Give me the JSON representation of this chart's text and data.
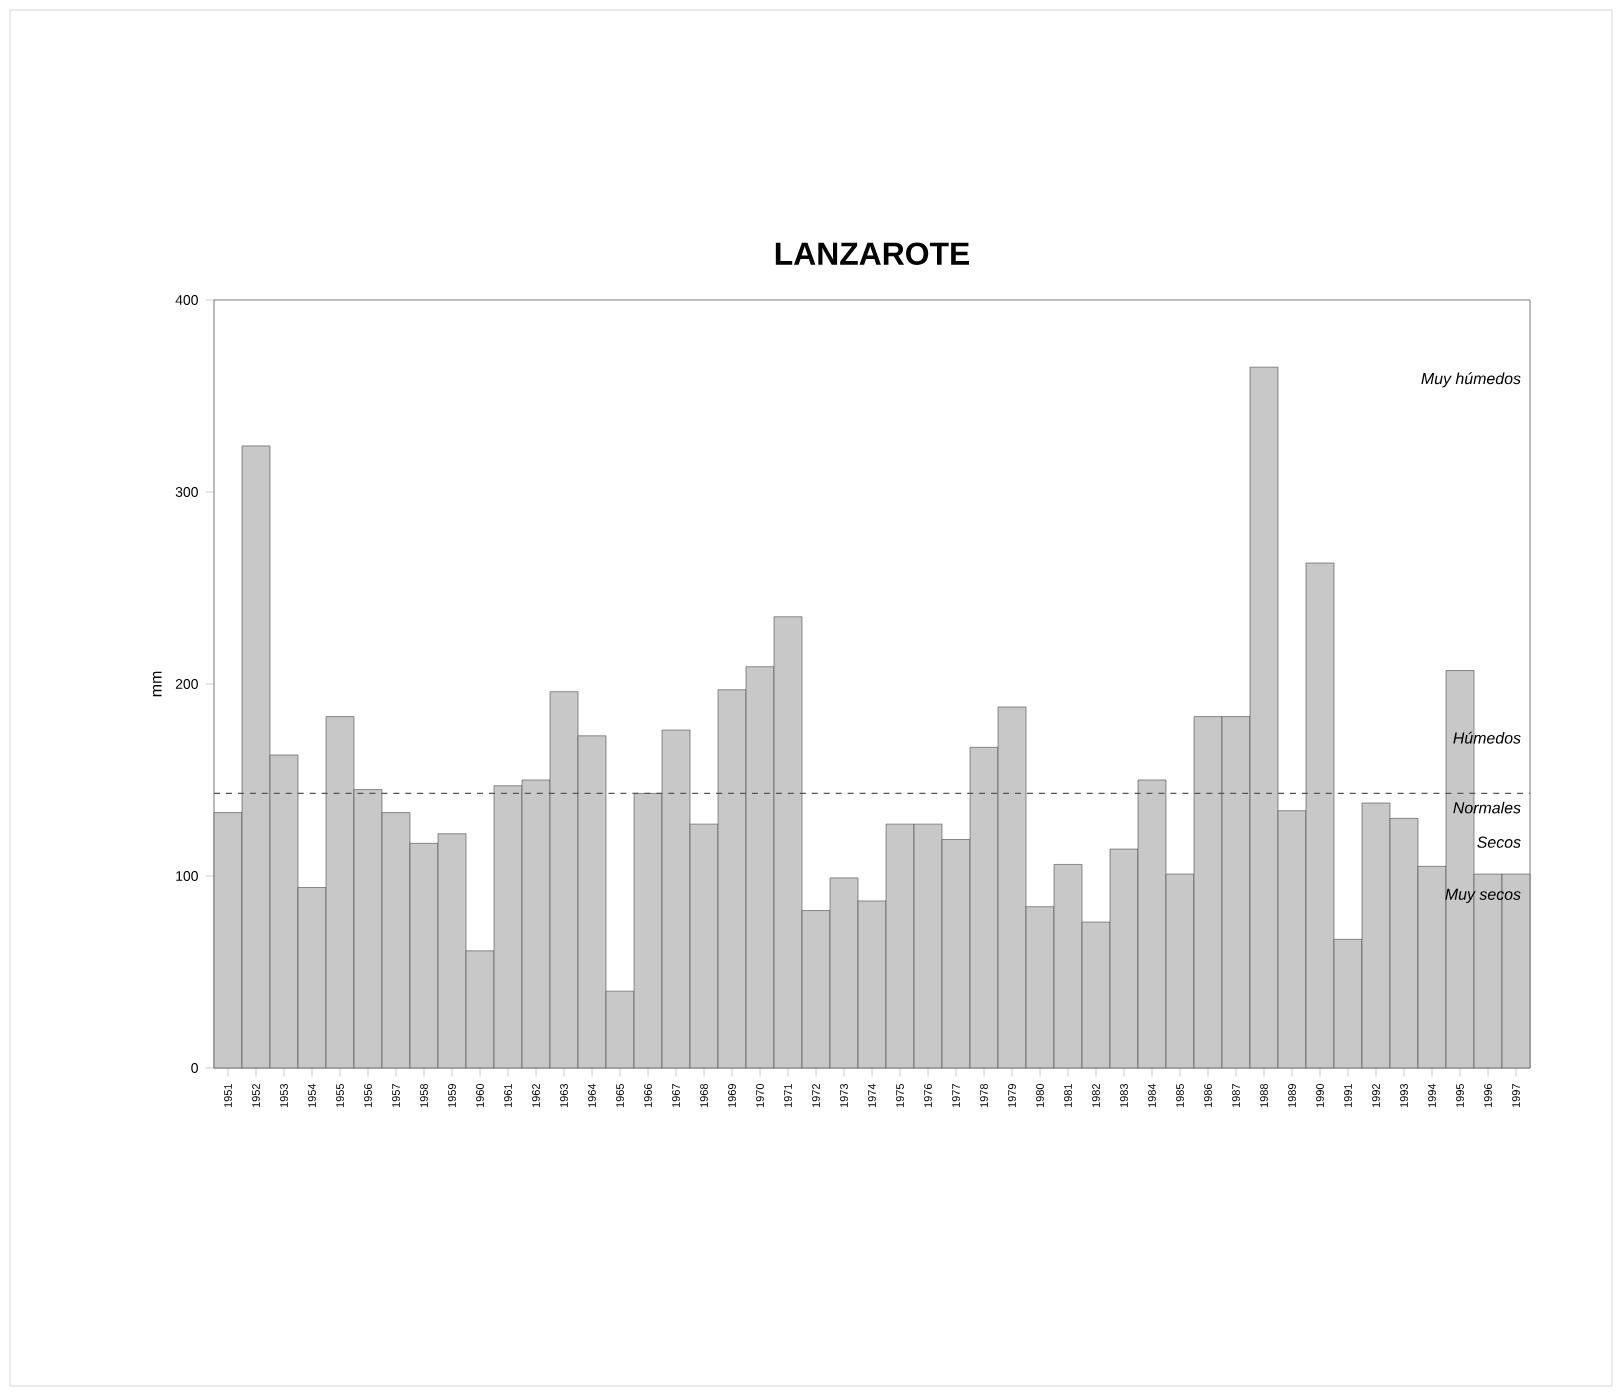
{
  "chart_data": {
    "type": "bar",
    "title": "LANZAROTE",
    "ylabel": "mm",
    "categories": [
      "1951",
      "1952",
      "1953",
      "1954",
      "1955",
      "1956",
      "1957",
      "1958",
      "1959",
      "1960",
      "1961",
      "1962",
      "1963",
      "1964",
      "1965",
      "1966",
      "1967",
      "1968",
      "1969",
      "1970",
      "1971",
      "1972",
      "1973",
      "1974",
      "1975",
      "1976",
      "1977",
      "1978",
      "1979",
      "1980",
      "1981",
      "1982",
      "1983",
      "1984",
      "1985",
      "1986",
      "1987",
      "1988",
      "1989",
      "1990",
      "1991",
      "1992",
      "1993",
      "1994",
      "1995",
      "1996",
      "1997"
    ],
    "values": [
      133,
      324,
      163,
      94,
      183,
      145,
      133,
      117,
      122,
      61,
      147,
      150,
      196,
      173,
      40,
      143,
      176,
      127,
      197,
      209,
      235,
      82,
      99,
      87,
      127,
      127,
      119,
      167,
      188,
      84,
      106,
      76,
      114,
      150,
      101,
      183,
      183,
      365,
      134,
      263,
      67,
      138,
      130,
      105,
      207,
      101,
      101
    ],
    "color": "#c8c8c8",
    "ylim": [
      0,
      400
    ],
    "yticks": [
      0,
      100,
      200,
      300,
      400
    ],
    "ref_lines": [
      {
        "axis": "y",
        "value": 143,
        "line_style": "dashed",
        "color": "#555555"
      }
    ],
    "annotations": [
      "Muy húmedos",
      "Húmedos",
      "Normales",
      "Secos",
      "Muy secos"
    ]
  }
}
